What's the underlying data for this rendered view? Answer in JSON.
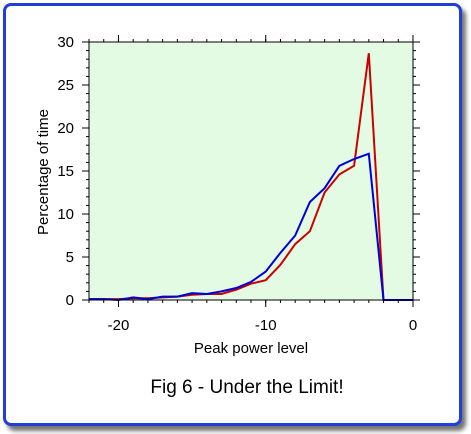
{
  "caption": "Fig 6 - Under the Limit!",
  "chart_data": {
    "type": "line",
    "title": "",
    "xlabel": "Peak power level",
    "ylabel": "Percentage of time",
    "xlim": [
      -22,
      0
    ],
    "ylim": [
      0,
      30
    ],
    "xticks": [
      -20,
      -10,
      0
    ],
    "yticks": [
      0,
      5,
      10,
      15,
      20,
      25,
      30
    ],
    "xtick_labels": [
      "-20",
      "-10",
      "0"
    ],
    "ytick_labels": [
      "0",
      "5",
      "10",
      "15",
      "20",
      "25",
      "30"
    ],
    "background_color": "#e3fbe3",
    "grid": false,
    "series": [
      {
        "color": "#cc0000",
        "x": [
          -22,
          -21,
          -20,
          -19,
          -18,
          -17,
          -16,
          -15,
          -14,
          -13,
          -12,
          -11,
          -10,
          -9,
          -8,
          -7,
          -6,
          -5,
          -4,
          -3,
          -2,
          -1,
          0
        ],
        "y": [
          0.1,
          0.1,
          0.1,
          0.2,
          0.2,
          0.3,
          0.4,
          0.6,
          0.7,
          0.7,
          1.2,
          1.9,
          2.3,
          4.1,
          6.5,
          8.0,
          12.5,
          14.6,
          15.6,
          28.7,
          0.0,
          0.0,
          0.0
        ]
      },
      {
        "color": "#0000dd",
        "x": [
          -22,
          -21,
          -20,
          -19,
          -18,
          -17,
          -16,
          -15,
          -14,
          -13,
          -12,
          -11,
          -10,
          -9,
          -8,
          -7,
          -6,
          -5,
          -4,
          -3,
          -2,
          -1,
          0
        ],
        "y": [
          0.1,
          0.1,
          0.0,
          0.3,
          0.1,
          0.4,
          0.4,
          0.8,
          0.7,
          1.0,
          1.4,
          2.1,
          3.3,
          5.5,
          7.5,
          11.4,
          13.0,
          15.6,
          16.4,
          17.0,
          0.0,
          0.0,
          0.0
        ]
      }
    ]
  }
}
